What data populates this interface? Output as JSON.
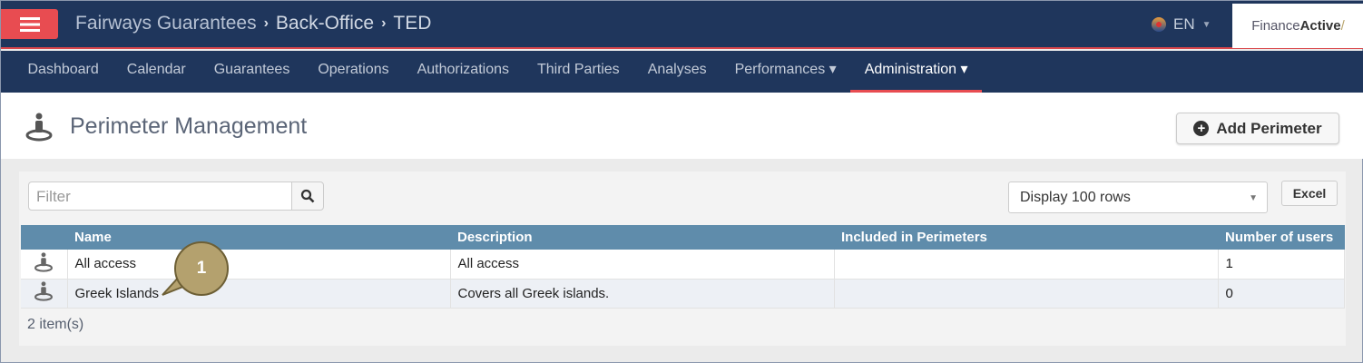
{
  "topbar": {
    "menu_icon": "hamburger-icon",
    "breadcrumbs": [
      "Fairways Guarantees",
      "Back-Office",
      "TED"
    ],
    "language": "EN",
    "logo": "FinanceActive"
  },
  "nav": {
    "items": [
      {
        "label": "Dashboard"
      },
      {
        "label": "Calendar"
      },
      {
        "label": "Guarantees"
      },
      {
        "label": "Operations"
      },
      {
        "label": "Authorizations"
      },
      {
        "label": "Third Parties"
      },
      {
        "label": "Analyses"
      },
      {
        "label": "Performances ▾"
      },
      {
        "label": "Administration ▾",
        "active": true
      }
    ]
  },
  "page": {
    "title": "Perimeter Management",
    "add_button": "Add Perimeter"
  },
  "toolbar": {
    "filter_placeholder": "Filter",
    "display_rows": "Display 100 rows",
    "excel": "Excel"
  },
  "table": {
    "columns": [
      "Name",
      "Description",
      "Included in Perimeters",
      "Number of users"
    ],
    "rows": [
      {
        "name": "All access",
        "description": "All access",
        "included": "",
        "users": "1"
      },
      {
        "name": "Greek Islands",
        "description": "Covers all Greek islands.",
        "included": "",
        "users": "0"
      }
    ],
    "count": "2 item(s)"
  },
  "callout": {
    "label": "1",
    "color": "#b4a16e"
  },
  "colors": {
    "navbar": "#1f365c",
    "accent": "#e84c51",
    "table_header": "#5f8cab"
  }
}
